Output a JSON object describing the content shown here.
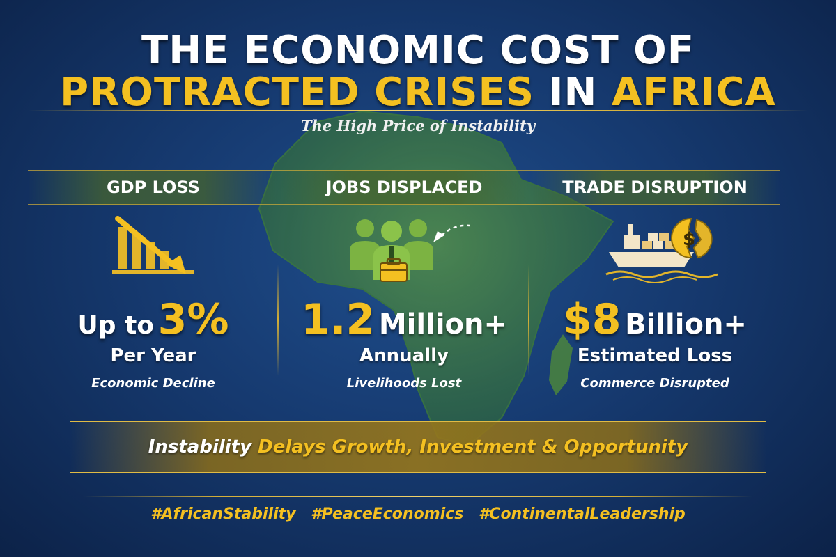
{
  "title": {
    "line1": "THE ECONOMIC COST OF",
    "line2_part1": "PROTRACTED CRISES",
    "line2_part2": "IN",
    "line2_part3": "AFRICA"
  },
  "subtitle": "The High Price of Instability",
  "stats": [
    {
      "heading": "GDP LOSS",
      "icon": "declining-bar-chart-icon",
      "prefix": "Up to",
      "value": "3%",
      "suffix": "",
      "unit": "Per Year",
      "description": "Economic Decline"
    },
    {
      "heading": "JOBS DISPLACED",
      "icon": "people-briefcase-icon",
      "prefix": "",
      "value": "1.2",
      "suffix": "Million+",
      "unit": "Annually",
      "description": "Livelihoods Lost"
    },
    {
      "heading": "TRADE DISRUPTION",
      "icon": "cargo-ship-broken-coin-icon",
      "prefix": "",
      "value": "$8",
      "suffix": "Billion+",
      "unit": "Estimated Loss",
      "description": "Commerce Disrupted"
    }
  ],
  "banner": {
    "part1": "Instability",
    "part2": "Delays Growth, Investment & Opportunity"
  },
  "hashtags": [
    "#AfricanStability",
    "#PeaceEconomics",
    "#ContinentalLeadership"
  ],
  "colors": {
    "background": "#163a70",
    "gold": "#f4c021",
    "green": "#7cb342",
    "white": "#ffffff"
  }
}
